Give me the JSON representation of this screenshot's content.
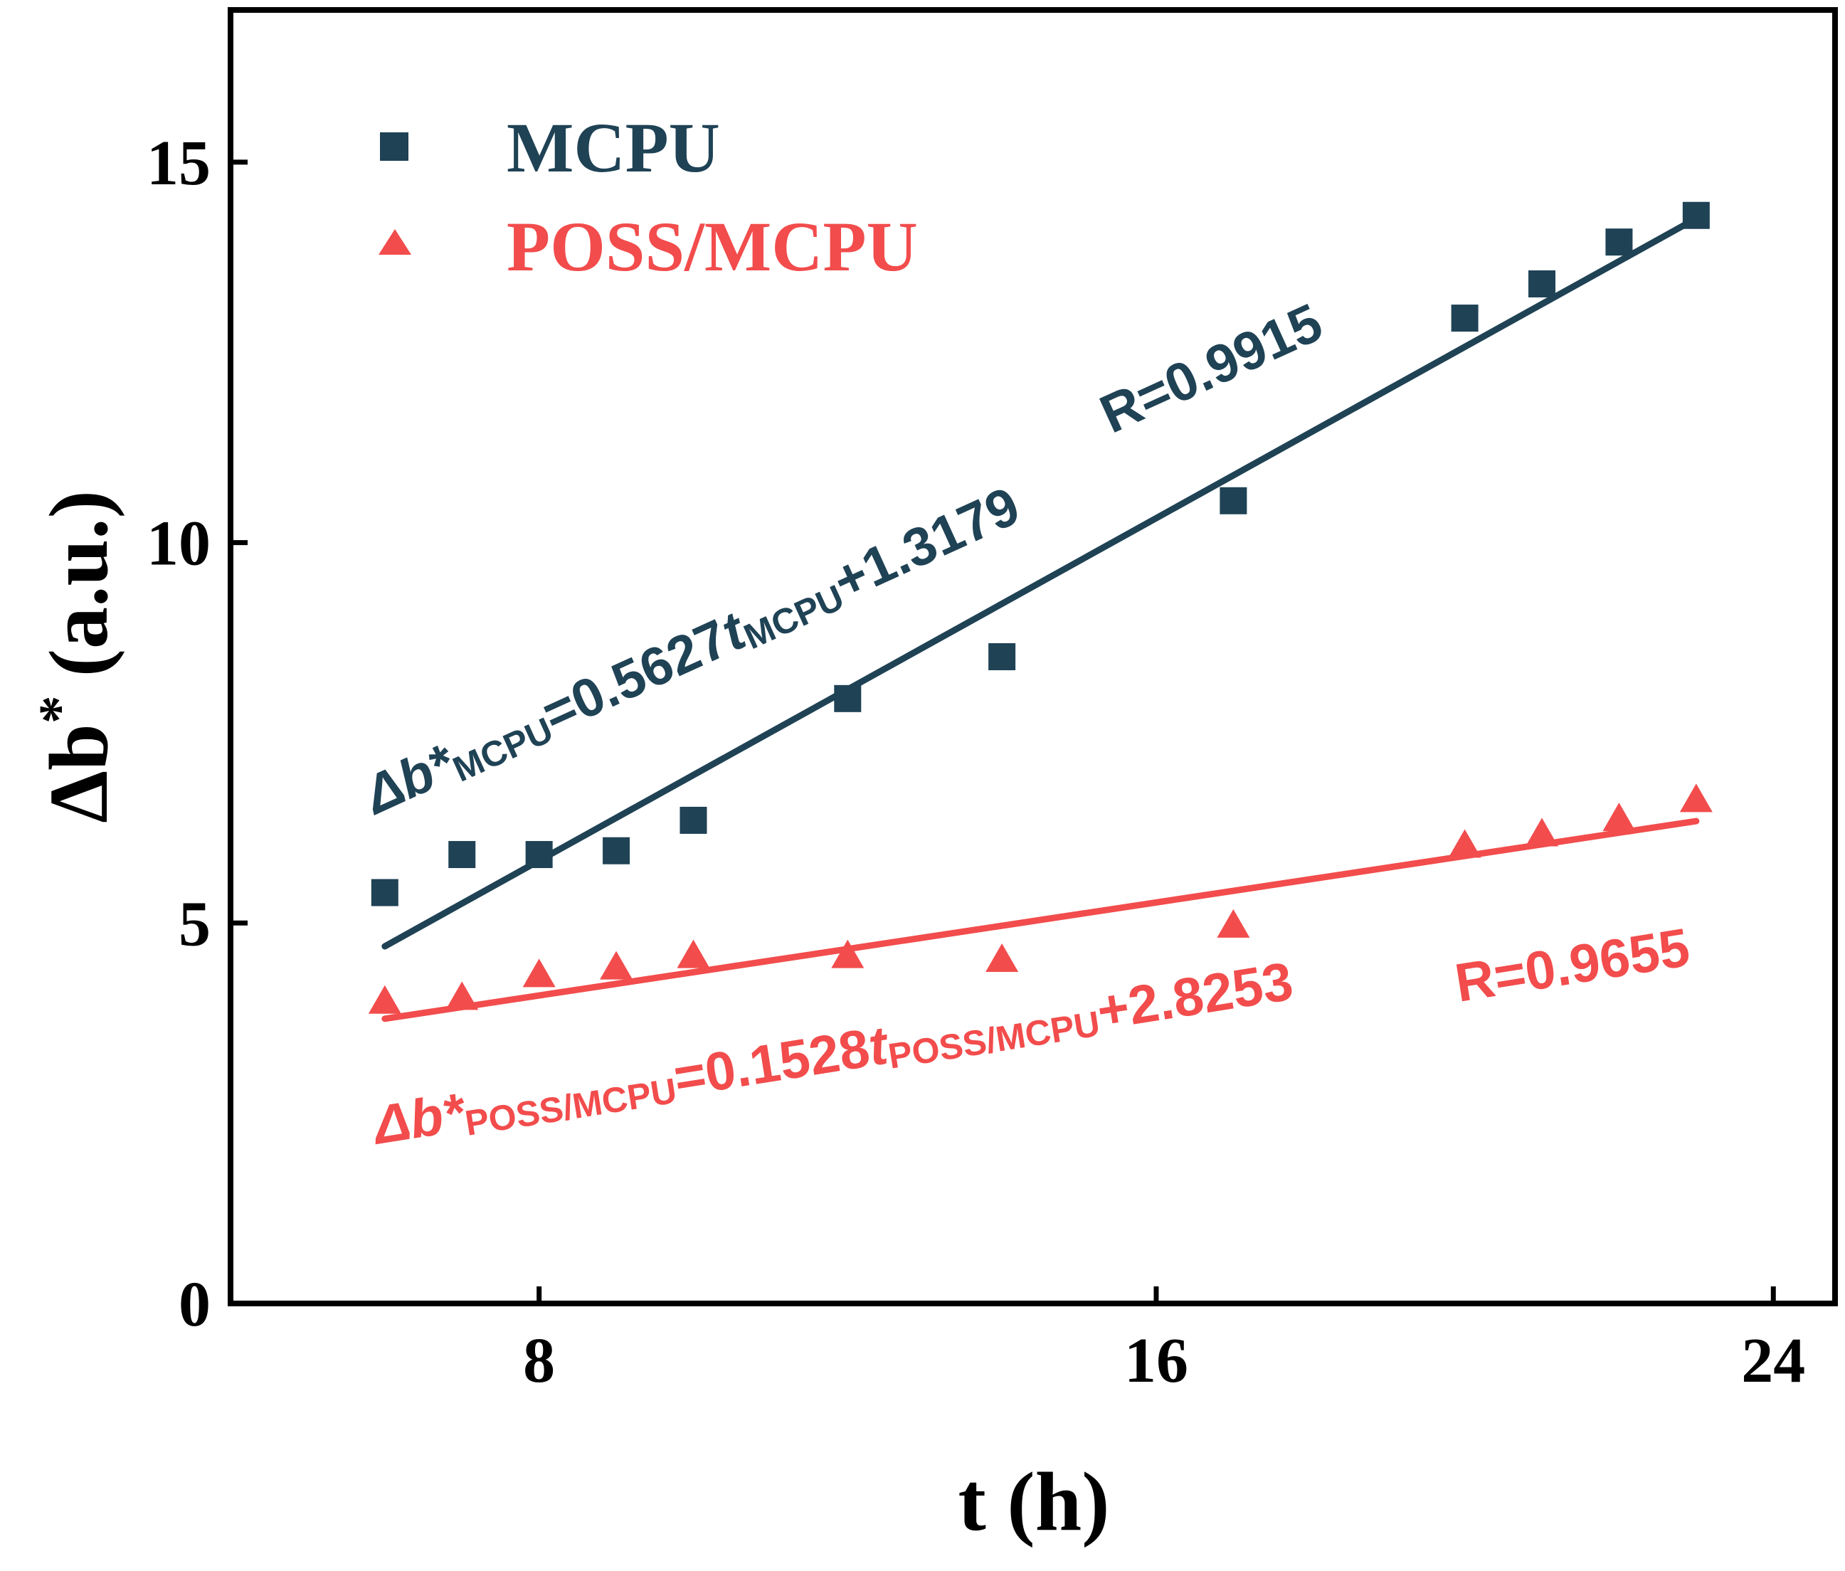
{
  "chart_data": {
    "type": "scatter",
    "xlabel": "t (h)",
    "ylabel_symbol": "Δb",
    "ylabel_star": "*",
    "ylabel_unit": "(a.u.)",
    "xlim": [
      4,
      24.8
    ],
    "ylim": [
      0,
      17
    ],
    "xticks": [
      {
        "value": 8,
        "label": "8"
      },
      {
        "value": 16,
        "label": "16"
      },
      {
        "value": 24,
        "label": "24"
      }
    ],
    "yticks": [
      {
        "value": 0,
        "label": "0"
      },
      {
        "value": 5,
        "label": "5"
      },
      {
        "value": 10,
        "label": "10"
      },
      {
        "value": 15,
        "label": "15"
      }
    ],
    "colors": {
      "MCPU": "#1f4255",
      "POSS/MCPU": "#f24c4c",
      "axis": "#000000"
    },
    "series": [
      {
        "name": "MCPU",
        "marker": "square",
        "x": [
          6,
          7,
          8,
          9,
          10,
          12,
          14,
          17,
          20,
          21,
          22,
          23
        ],
        "y": [
          5.4,
          5.9,
          5.9,
          5.95,
          6.35,
          7.95,
          8.5,
          10.55,
          12.95,
          13.4,
          13.95,
          14.3
        ],
        "fit": {
          "slope": 0.5627,
          "intercept": 1.3179,
          "x_range": [
            6,
            23
          ],
          "equation_parts": {
            "symbol": "Δb*",
            "sub1": "MCPU",
            "middle": "=0.5627",
            "t": "t",
            "sub2": "MCPU",
            "tail": "+1.3179"
          },
          "r_label": "R=0.9915"
        }
      },
      {
        "name": "POSS/MCPU",
        "marker": "triangle",
        "x": [
          6,
          7,
          8,
          9,
          10,
          12,
          14,
          17,
          20,
          21,
          22,
          23
        ],
        "y": [
          3.95,
          4.0,
          4.3,
          4.4,
          4.55,
          4.55,
          4.5,
          4.95,
          6.0,
          6.15,
          6.35,
          6.6
        ],
        "fit": {
          "slope": 0.1528,
          "intercept": 2.8253,
          "x_range": [
            6,
            23
          ],
          "equation_parts": {
            "symbol": "Δb*",
            "sub1": "POSS/MCPU",
            "middle": "=0.1528",
            "t": "t",
            "sub2": "POSS/MCPU",
            "tail": "+2.8253"
          },
          "r_label": "R=0.9655"
        }
      }
    ],
    "legend": {
      "placement": "top-left",
      "entries": [
        "MCPU",
        "POSS/MCPU"
      ]
    }
  }
}
